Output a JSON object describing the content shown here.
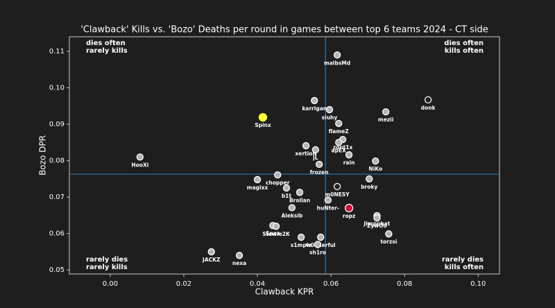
{
  "chart_data": {
    "type": "scatter",
    "title": "'Clawback' Kills vs. 'Bozo' Deaths per round in games between top 6 teams 2024 - CT side",
    "x_label": "Clawback KPR",
    "y_label": "Bozo DPR",
    "labels": [
      "malbsMd",
      "karrigan",
      "siuhy",
      "mezii",
      "donk",
      "Spinx",
      "flameZ",
      "zont1x",
      "apEX",
      "xertioN",
      "jL",
      "rain",
      "NiKo",
      "HooXi",
      "frozen",
      "chopper",
      "magixx",
      "broky",
      "b1t",
      "m0NESY",
      "Brollan",
      "huNter-",
      "ropz",
      "Aleksib",
      "Jimpphat",
      "ZywOo",
      "Snax",
      "Stewie2K",
      "torzsi",
      "s1mple",
      "w0nderful",
      "sh1ro",
      "JACKZ",
      "nexa"
    ],
    "x": [
      0.0617,
      0.0555,
      0.0596,
      0.0749,
      0.0864,
      0.0415,
      0.0621,
      0.0632,
      0.0621,
      0.0532,
      0.0558,
      0.0649,
      0.0721,
      0.0081,
      0.0568,
      0.0455,
      0.04,
      0.0704,
      0.0479,
      0.0617,
      0.0515,
      0.0592,
      0.0649,
      0.0494,
      0.0725,
      0.0725,
      0.0442,
      0.0451,
      0.0757,
      0.0519,
      0.0572,
      0.0564,
      0.0275,
      0.0351
    ],
    "y": [
      0.109,
      0.0965,
      0.094,
      0.0934,
      0.0967,
      0.0919,
      0.0902,
      0.0858,
      0.085,
      0.0841,
      0.083,
      0.0816,
      0.0799,
      0.081,
      0.079,
      0.0761,
      0.0748,
      0.075,
      0.0725,
      0.0729,
      0.0713,
      0.0692,
      0.067,
      0.0671,
      0.0649,
      0.0643,
      0.0622,
      0.062,
      0.0599,
      0.059,
      0.059,
      0.057,
      0.055,
      0.054
    ],
    "colors": [
      "#b3b3b3",
      "#b3b3b3",
      "#b3b3b3",
      "#b3b3b3",
      "#1e1e1e",
      "#ffff33",
      "#b3b3b3",
      "#b3b3b3",
      "#b3b3b3",
      "#b3b3b3",
      "#b3b3b3",
      "#b3b3b3",
      "#b3b3b3",
      "#b3b3b3",
      "#b3b3b3",
      "#b3b3b3",
      "#b3b3b3",
      "#b3b3b3",
      "#b3b3b3",
      "#1e1e1e",
      "#b3b3b3",
      "#b3b3b3",
      "#d0102a",
      "#b3b3b3",
      "#b3b3b3",
      "#b3b3b3",
      "#b3b3b3",
      "#b3b3b3",
      "#b3b3b3",
      "#b3b3b3",
      "#b3b3b3",
      "#b3b3b3",
      "#b3b3b3",
      "#b3b3b3"
    ],
    "x_mean": 0.0585,
    "y_mean": 0.0763,
    "mean_line_color": "#2a7ab8",
    "xlim": [
      -0.0111,
      0.1058
    ],
    "ylim": [
      0.0489,
      0.114
    ],
    "xticks": [
      {
        "value": 0,
        "label": "0.00"
      },
      0.02,
      0.04,
      0.06,
      0.08,
      {
        "value": 0.1,
        "label": "0.10"
      }
    ],
    "yticks": [
      0.05,
      0.06,
      0.07,
      0.08,
      0.09,
      {
        "value": 0.1,
        "label": "0.10"
      },
      0.11
    ],
    "annotations": {
      "top_left": [
        "dies often",
        "rarely kills"
      ],
      "top_right": [
        "dies often",
        "kills often"
      ],
      "bottom_left": [
        "rarely dies",
        "rarely kills"
      ],
      "bottom_right": [
        "rarely dies",
        "kills often"
      ]
    }
  }
}
